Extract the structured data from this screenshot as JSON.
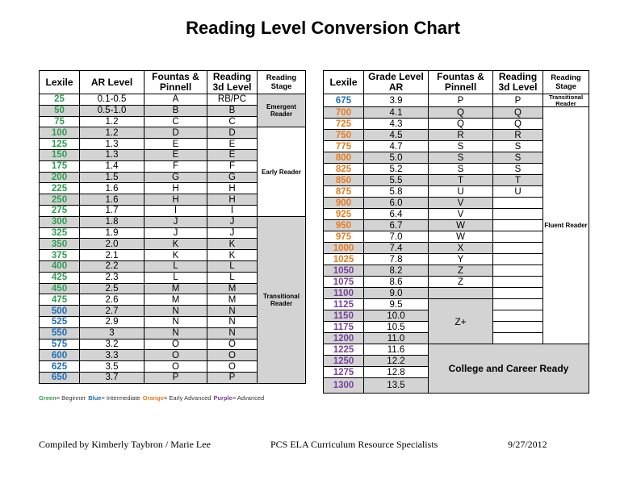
{
  "title": "Reading Level Conversion Chart",
  "left_table": {
    "headers": [
      "Lexile",
      "AR Level",
      "Fountas & Pinnell",
      "Reading 3d Level",
      "Reading Stage"
    ],
    "stages": [
      "Emergent Reader",
      "Early Reader",
      "Transitional Reader"
    ],
    "rows": [
      {
        "lexile": 25,
        "ar": "0.1-0.5",
        "fp": "A",
        "rd": "RB/PC",
        "color": "#2f9e4f"
      },
      {
        "lexile": 50,
        "ar": "0.5-1.0",
        "fp": "B",
        "rd": "B",
        "color": "#2f9e4f"
      },
      {
        "lexile": 75,
        "ar": "1.2",
        "fp": "C",
        "rd": "C",
        "color": "#2f9e4f"
      },
      {
        "lexile": 100,
        "ar": "1.2",
        "fp": "D",
        "rd": "D",
        "color": "#2f9e4f"
      },
      {
        "lexile": 125,
        "ar": "1.3",
        "fp": "E",
        "rd": "E",
        "color": "#2f9e4f"
      },
      {
        "lexile": 150,
        "ar": "1.3",
        "fp": "E",
        "rd": "E",
        "color": "#2f9e4f"
      },
      {
        "lexile": 175,
        "ar": "1.4",
        "fp": "F",
        "rd": "F",
        "color": "#2f9e4f"
      },
      {
        "lexile": 200,
        "ar": "1.5",
        "fp": "G",
        "rd": "G",
        "color": "#2f9e4f"
      },
      {
        "lexile": 225,
        "ar": "1.6",
        "fp": "H",
        "rd": "H",
        "color": "#2f9e4f"
      },
      {
        "lexile": 250,
        "ar": "1.6",
        "fp": "H",
        "rd": "H",
        "color": "#2f9e4f"
      },
      {
        "lexile": 275,
        "ar": "1.7",
        "fp": "I",
        "rd": "I",
        "color": "#2f9e4f"
      },
      {
        "lexile": 300,
        "ar": "1.8",
        "fp": "J",
        "rd": "J",
        "color": "#2f9e4f"
      },
      {
        "lexile": 325,
        "ar": "1.9",
        "fp": "J",
        "rd": "J",
        "color": "#2f9e4f"
      },
      {
        "lexile": 350,
        "ar": "2.0",
        "fp": "K",
        "rd": "K",
        "color": "#2f9e4f"
      },
      {
        "lexile": 375,
        "ar": "2.1",
        "fp": "K",
        "rd": "K",
        "color": "#2f9e4f"
      },
      {
        "lexile": 400,
        "ar": "2.2",
        "fp": "L",
        "rd": "L",
        "color": "#2f9e4f"
      },
      {
        "lexile": 425,
        "ar": "2.3",
        "fp": "L",
        "rd": "L",
        "color": "#2f9e4f"
      },
      {
        "lexile": 450,
        "ar": "2.5",
        "fp": "M",
        "rd": "M",
        "color": "#2f9e4f"
      },
      {
        "lexile": 475,
        "ar": "2.6",
        "fp": "M",
        "rd": "M",
        "color": "#2f9e4f"
      },
      {
        "lexile": 500,
        "ar": "2.7",
        "fp": "N",
        "rd": "N",
        "color": "#1f6fb5"
      },
      {
        "lexile": 525,
        "ar": "2.9",
        "fp": "N",
        "rd": "N",
        "color": "#1f6fb5"
      },
      {
        "lexile": 550,
        "ar": "3",
        "fp": "N",
        "rd": "N",
        "color": "#1f6fb5"
      },
      {
        "lexile": 575,
        "ar": "3.2",
        "fp": "O",
        "rd": "O",
        "color": "#1f6fb5"
      },
      {
        "lexile": 600,
        "ar": "3.3",
        "fp": "O",
        "rd": "O",
        "color": "#1f6fb5"
      },
      {
        "lexile": 625,
        "ar": "3.5",
        "fp": "O",
        "rd": "O",
        "color": "#1f6fb5"
      },
      {
        "lexile": 650,
        "ar": "3.7",
        "fp": "P",
        "rd": "P",
        "color": "#1f6fb5"
      }
    ]
  },
  "right_table": {
    "headers": [
      "Lexile",
      "Grade Level AR",
      "Fountas & Pinnell",
      "Reading 3d Level",
      "Reading Stage"
    ],
    "stages": [
      "Transitional Reader",
      "Fluent Reader"
    ],
    "fp_merged": "Z+",
    "college": "College and Career Ready",
    "rows": [
      {
        "lexile": 675,
        "ar": "3.9",
        "fp": "P",
        "rd": "P",
        "color": "#1f6fb5"
      },
      {
        "lexile": 700,
        "ar": "4.1",
        "fp": "Q",
        "rd": "Q",
        "color": "#e87b1e"
      },
      {
        "lexile": 725,
        "ar": "4.3",
        "fp": "Q",
        "rd": "Q",
        "color": "#e87b1e"
      },
      {
        "lexile": 750,
        "ar": "4.5",
        "fp": "R",
        "rd": "R",
        "color": "#e87b1e"
      },
      {
        "lexile": 775,
        "ar": "4.7",
        "fp": "S",
        "rd": "S",
        "color": "#e87b1e"
      },
      {
        "lexile": 800,
        "ar": "5.0",
        "fp": "S",
        "rd": "S",
        "color": "#e87b1e"
      },
      {
        "lexile": 825,
        "ar": "5.2",
        "fp": "S",
        "rd": "S",
        "color": "#e87b1e"
      },
      {
        "lexile": 850,
        "ar": "5.5",
        "fp": "T",
        "rd": "T",
        "color": "#e87b1e"
      },
      {
        "lexile": 875,
        "ar": "5.8",
        "fp": "U",
        "rd": "U",
        "color": "#e87b1e"
      },
      {
        "lexile": 900,
        "ar": "6.0",
        "fp": "V",
        "color": "#e87b1e"
      },
      {
        "lexile": 925,
        "ar": "6.4",
        "fp": "V",
        "color": "#e87b1e"
      },
      {
        "lexile": 950,
        "ar": "6.7",
        "fp": "W",
        "color": "#e87b1e"
      },
      {
        "lexile": 975,
        "ar": "7.0",
        "fp": "W",
        "color": "#e87b1e"
      },
      {
        "lexile": 1000,
        "ar": "7.4",
        "fp": "X",
        "color": "#e87b1e"
      },
      {
        "lexile": 1025,
        "ar": "7.8",
        "fp": "Y",
        "color": "#e87b1e"
      },
      {
        "lexile": 1050,
        "ar": "8.2",
        "fp": "Z",
        "color": "#7a3f9d"
      },
      {
        "lexile": 1075,
        "ar": "8.6",
        "fp": "Z",
        "color": "#7a3f9d"
      },
      {
        "lexile": 1100,
        "ar": "9.0",
        "color": "#7a3f9d"
      },
      {
        "lexile": 1125,
        "ar": "9.5",
        "color": "#7a3f9d"
      },
      {
        "lexile": 1150,
        "ar": "10.0",
        "color": "#7a3f9d"
      },
      {
        "lexile": 1175,
        "ar": "10.5",
        "color": "#7a3f9d"
      },
      {
        "lexile": 1200,
        "ar": "11.0",
        "color": "#7a3f9d"
      },
      {
        "lexile": 1225,
        "ar": "11.6",
        "color": "#7a3f9d"
      },
      {
        "lexile": 1250,
        "ar": "12.2",
        "color": "#7a3f9d"
      },
      {
        "lexile": 1275,
        "ar": "12.8",
        "color": "#7a3f9d"
      },
      {
        "lexile": 1300,
        "ar": "13.5",
        "color": "#7a3f9d"
      }
    ]
  },
  "legend": [
    {
      "name": "Green",
      "text": "= Beginner",
      "color": "#2f9e4f"
    },
    {
      "name": "Blue",
      "text": "= Intermediate",
      "color": "#1f6fb5"
    },
    {
      "name": "Orange",
      "text": "= Early Advanced",
      "color": "#e87b1e"
    },
    {
      "name": "Purple",
      "text": "= Advanced",
      "color": "#7a3f9d"
    }
  ],
  "footer": {
    "left": "Compiled by Kimberly Taybron / Marie Lee",
    "center": "PCS ELA Curriculum Resource Specialists",
    "right": "9/27/2012"
  }
}
